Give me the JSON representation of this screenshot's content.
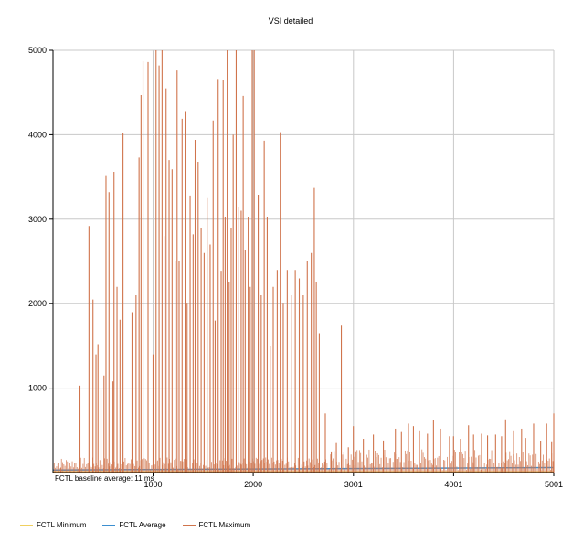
{
  "chart_data": {
    "type": "line",
    "title": "VSI detailed",
    "annotation": "FCTL baseline average: 11 ms",
    "xlim": [
      1,
      5001
    ],
    "ylim": [
      0,
      5000
    ],
    "grid": true,
    "x_ticks": [
      1000,
      2000,
      3001,
      4001,
      5001
    ],
    "y_ticks": [
      1000,
      2000,
      3000,
      4000,
      5000
    ],
    "legend_position": "bottom-left",
    "series": [
      {
        "name": "FCTL Minimum",
        "color": "#f0d060",
        "values": [
          [
            1,
            10
          ],
          [
            5001,
            10
          ]
        ]
      },
      {
        "name": "FCTL Average",
        "color": "#3c8fd0",
        "values": [
          [
            1,
            30
          ],
          [
            5001,
            60
          ]
        ]
      },
      {
        "name": "FCTL Maximum",
        "color": "#d0744c",
        "spikes": [
          [
            80,
            60
          ],
          [
            270,
            1030
          ],
          [
            360,
            2920
          ],
          [
            400,
            2050
          ],
          [
            430,
            1400
          ],
          [
            450,
            1520
          ],
          [
            480,
            980
          ],
          [
            510,
            1150
          ],
          [
            530,
            3510
          ],
          [
            560,
            3320
          ],
          [
            600,
            1080
          ],
          [
            610,
            3560
          ],
          [
            640,
            2200
          ],
          [
            670,
            1810
          ],
          [
            700,
            4020
          ],
          [
            790,
            1900
          ],
          [
            830,
            2100
          ],
          [
            860,
            3730
          ],
          [
            880,
            4470
          ],
          [
            900,
            4870
          ],
          [
            950,
            4860
          ],
          [
            1000,
            1400
          ],
          [
            1030,
            5000
          ],
          [
            1060,
            4820
          ],
          [
            1090,
            5000
          ],
          [
            1110,
            2800
          ],
          [
            1130,
            4550
          ],
          [
            1160,
            3700
          ],
          [
            1190,
            3590
          ],
          [
            1220,
            2500
          ],
          [
            1240,
            4760
          ],
          [
            1260,
            2500
          ],
          [
            1290,
            4190
          ],
          [
            1320,
            4280
          ],
          [
            1340,
            2000
          ],
          [
            1370,
            3280
          ],
          [
            1400,
            2820
          ],
          [
            1420,
            3940
          ],
          [
            1450,
            3680
          ],
          [
            1480,
            2900
          ],
          [
            1510,
            2600
          ],
          [
            1540,
            3250
          ],
          [
            1570,
            2700
          ],
          [
            1600,
            4170
          ],
          [
            1620,
            1800
          ],
          [
            1650,
            4660
          ],
          [
            1680,
            2380
          ],
          [
            1700,
            4650
          ],
          [
            1720,
            3030
          ],
          [
            1740,
            5000
          ],
          [
            1760,
            2260
          ],
          [
            1780,
            2900
          ],
          [
            1800,
            4000
          ],
          [
            1830,
            5000
          ],
          [
            1850,
            3150
          ],
          [
            1880,
            3100
          ],
          [
            1900,
            4460
          ],
          [
            1920,
            2630
          ],
          [
            1950,
            3030
          ],
          [
            1970,
            2200
          ],
          [
            1990,
            5000
          ],
          [
            2010,
            5000
          ],
          [
            2050,
            3290
          ],
          [
            2080,
            2100
          ],
          [
            2110,
            3930
          ],
          [
            2140,
            3030
          ],
          [
            2170,
            1500
          ],
          [
            2200,
            2200
          ],
          [
            2240,
            2400
          ],
          [
            2270,
            4030
          ],
          [
            2300,
            2000
          ],
          [
            2340,
            2400
          ],
          [
            2380,
            2100
          ],
          [
            2420,
            2400
          ],
          [
            2460,
            2300
          ],
          [
            2500,
            2100
          ],
          [
            2540,
            2500
          ],
          [
            2580,
            2600
          ],
          [
            2610,
            3370
          ],
          [
            2630,
            2260
          ],
          [
            2660,
            1650
          ],
          [
            2720,
            700
          ],
          [
            2780,
            250
          ],
          [
            2830,
            350
          ],
          [
            2880,
            1740
          ],
          [
            2950,
            300
          ],
          [
            3000,
            550
          ],
          [
            3100,
            400
          ],
          [
            3200,
            450
          ],
          [
            3300,
            380
          ],
          [
            3420,
            520
          ],
          [
            3480,
            480
          ],
          [
            3550,
            580
          ],
          [
            3600,
            550
          ],
          [
            3660,
            500
          ],
          [
            3740,
            460
          ],
          [
            3800,
            620
          ],
          [
            3870,
            520
          ],
          [
            3960,
            430
          ],
          [
            4000,
            430
          ],
          [
            4070,
            400
          ],
          [
            4150,
            560
          ],
          [
            4200,
            450
          ],
          [
            4280,
            460
          ],
          [
            4340,
            440
          ],
          [
            4420,
            450
          ],
          [
            4480,
            430
          ],
          [
            4520,
            630
          ],
          [
            4600,
            500
          ],
          [
            4680,
            520
          ],
          [
            4720,
            410
          ],
          [
            4800,
            580
          ],
          [
            4870,
            370
          ],
          [
            4930,
            580
          ],
          [
            4980,
            360
          ],
          [
            5001,
            700
          ]
        ]
      }
    ]
  }
}
